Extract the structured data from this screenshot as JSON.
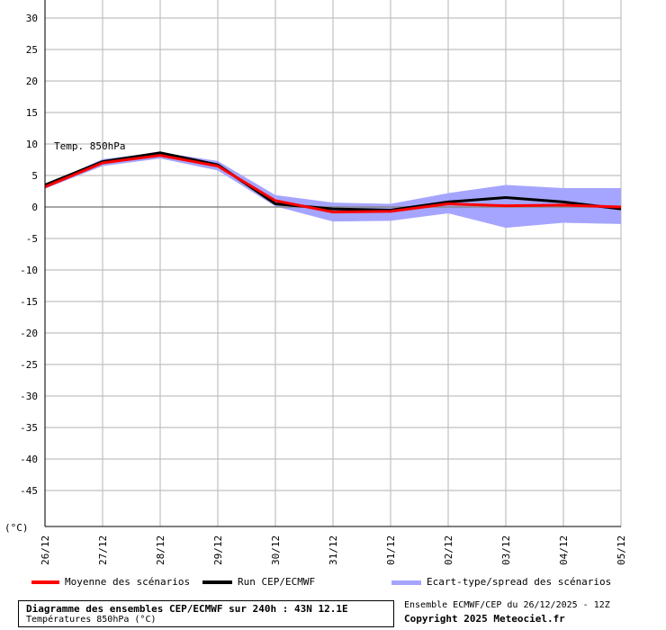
{
  "chart_data": {
    "type": "line",
    "unit_label": "(°C)",
    "series_label": "Temp. 850hPa",
    "categories": [
      "26/12",
      "27/12",
      "28/12",
      "29/12",
      "30/12",
      "31/12",
      "01/12",
      "02/12",
      "03/12",
      "04/12",
      "05/12"
    ],
    "ylim": [
      -50,
      30
    ],
    "yticks": [
      30,
      25,
      20,
      15,
      10,
      5,
      0,
      -5,
      -10,
      -15,
      -20,
      -25,
      -30,
      -35,
      -40,
      -45
    ],
    "grid": true,
    "series": [
      {
        "name": "Moyenne des scénarios",
        "color": "#ff0000",
        "values": [
          3.2,
          7.0,
          8.2,
          6.5,
          1.0,
          -0.8,
          -0.7,
          0.5,
          0.2,
          0.3,
          0.0
        ]
      },
      {
        "name": "Run CEP/ECMWF",
        "color": "#000000",
        "values": [
          3.5,
          7.2,
          8.6,
          6.7,
          0.5,
          -0.3,
          -0.5,
          0.8,
          1.5,
          0.8,
          -0.3
        ]
      }
    ],
    "spread": {
      "name": "Ecart-type/spread des scénarios",
      "color": "#a5a5ff",
      "upper": [
        3.5,
        7.6,
        8.7,
        7.3,
        1.9,
        0.7,
        0.5,
        2.2,
        3.5,
        3.0,
        3.0
      ],
      "lower": [
        2.9,
        6.5,
        7.7,
        5.8,
        0.1,
        -2.3,
        -2.2,
        -1.0,
        -3.3,
        -2.5,
        -2.7
      ]
    }
  },
  "footer": {
    "title": "Diagramme des ensembles CEP/ECMWF sur 240h : 43N 12.1E",
    "subtitle": "Températures 850hPa (°C)",
    "run_info": "Ensemble ECMWF/CEP du 26/12/2025 - 12Z",
    "copyright": "Copyright 2025 Meteociel.fr"
  }
}
